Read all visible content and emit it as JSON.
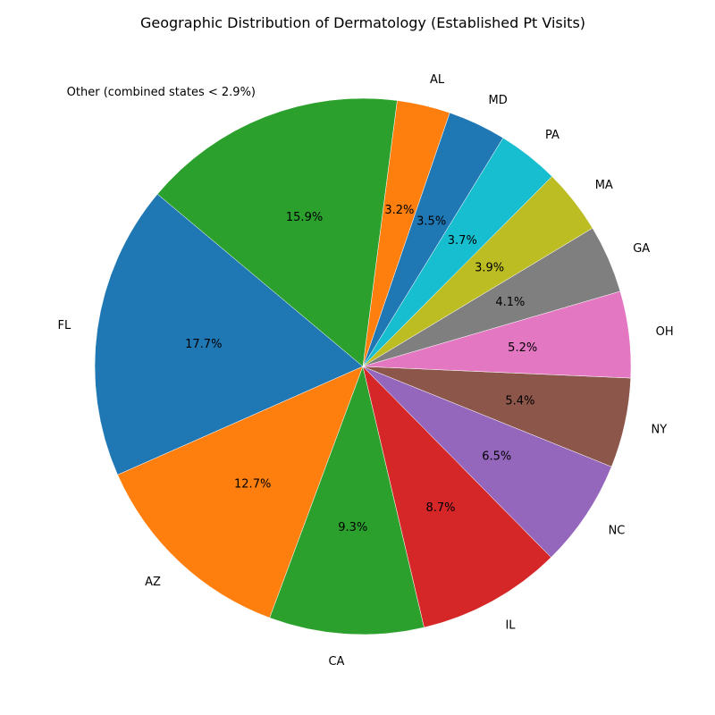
{
  "chart_data": {
    "type": "pie",
    "title": "Geographic Distribution of Dermatology (Established Pt Visits)",
    "slices": [
      {
        "label": "FL",
        "value": 17.7,
        "pct_label": "17.7%",
        "color": "#1f77b4"
      },
      {
        "label": "AZ",
        "value": 12.7,
        "pct_label": "12.7%",
        "color": "#ff7f0e"
      },
      {
        "label": "CA",
        "value": 9.3,
        "pct_label": "9.3%",
        "color": "#2ca02c"
      },
      {
        "label": "IL",
        "value": 8.7,
        "pct_label": "8.7%",
        "color": "#d62728"
      },
      {
        "label": "NC",
        "value": 6.5,
        "pct_label": "6.5%",
        "color": "#9467bd"
      },
      {
        "label": "NY",
        "value": 5.4,
        "pct_label": "5.4%",
        "color": "#8c564b"
      },
      {
        "label": "OH",
        "value": 5.2,
        "pct_label": "5.2%",
        "color": "#e377c2"
      },
      {
        "label": "GA",
        "value": 4.1,
        "pct_label": "4.1%",
        "color": "#7f7f7f"
      },
      {
        "label": "MA",
        "value": 3.9,
        "pct_label": "3.9%",
        "color": "#bcbd22"
      },
      {
        "label": "PA",
        "value": 3.7,
        "pct_label": "3.7%",
        "color": "#17becf"
      },
      {
        "label": "MD",
        "value": 3.5,
        "pct_label": "3.5%",
        "color": "#1f77b4"
      },
      {
        "label": "AL",
        "value": 3.2,
        "pct_label": "3.2%",
        "color": "#ff7f0e"
      },
      {
        "label": "Other (combined states < 2.9%)",
        "value": 15.9,
        "pct_label": "15.9%",
        "color": "#2ca02c"
      }
    ],
    "start_angle_deg": 140,
    "direction": "counterclockwise",
    "legend": "none"
  }
}
